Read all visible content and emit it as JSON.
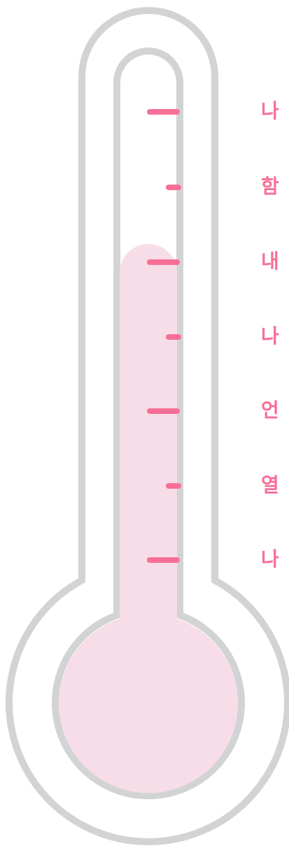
{
  "labels": [
    "나",
    "함",
    "내",
    "나",
    "언",
    "열",
    "나"
  ]
}
